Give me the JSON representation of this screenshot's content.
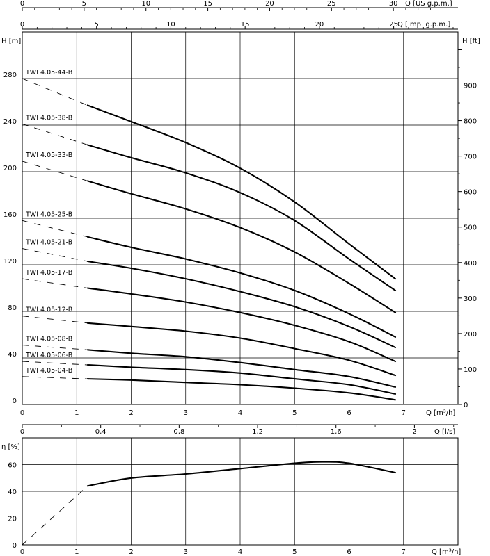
{
  "chart_data": [
    {
      "type": "line",
      "title": "",
      "xlabel": "Q [m³/h]",
      "ylabel": "H [m]",
      "ylabel_right": "H [ft]",
      "xlim": [
        0,
        8
      ],
      "ylim": [
        0,
        320
      ],
      "top_axis_usgpm": {
        "label": "Q [US g.p.m.]",
        "ticks": [
          "0",
          "5",
          "10",
          "15",
          "20",
          "25",
          "30"
        ]
      },
      "top_axis_imp": {
        "label": "Q [Imp. g.p.m.]",
        "ticks": [
          "0",
          "5",
          "10",
          "15",
          "20",
          "25"
        ]
      },
      "x_ticks": [
        "0",
        "1",
        "2",
        "3",
        "4",
        "5",
        "6",
        "7"
      ],
      "y_ticks": [
        "0",
        "40",
        "80",
        "120",
        "160",
        "200",
        "240",
        "280"
      ],
      "right_ticks": [
        "0",
        "100",
        "200",
        "300",
        "400",
        "500",
        "600",
        "700",
        "800",
        "900"
      ],
      "grid": true,
      "series": [
        {
          "name": "TWI 4.05-44-B",
          "x": [
            1.2,
            2,
            3,
            4,
            5,
            6,
            6.85
          ],
          "y": [
            257,
            243,
            225,
            203,
            174,
            138,
            108
          ],
          "dashed_to": 280
        },
        {
          "name": "TWI 4.05-38-B",
          "x": [
            1.2,
            2,
            3,
            4,
            5,
            6,
            6.85
          ],
          "y": [
            223,
            212,
            199,
            182,
            158,
            125,
            98
          ],
          "dashed_to": 241
        },
        {
          "name": "TWI 4.05-33-B",
          "x": [
            1.2,
            2,
            3,
            4,
            5,
            6,
            6.85
          ],
          "y": [
            192,
            181,
            168,
            152,
            131,
            104,
            79
          ],
          "dashed_to": 209
        },
        {
          "name": "TWI 4.05-25-B",
          "x": [
            1.2,
            2,
            3,
            4,
            5,
            6,
            6.85
          ],
          "y": [
            144,
            135,
            125,
            113,
            98,
            78,
            58
          ],
          "dashed_to": 158
        },
        {
          "name": "TWI 4.05-21-B",
          "x": [
            1.2,
            2,
            3,
            4,
            5,
            6,
            6.85
          ],
          "y": [
            123,
            117,
            108,
            97,
            84,
            67,
            49
          ],
          "dashed_to": 134
        },
        {
          "name": "TWI 4.05-17-B",
          "x": [
            1.2,
            2,
            3,
            4,
            5,
            6,
            6.85
          ],
          "y": [
            100,
            95,
            88,
            79,
            68,
            54,
            37
          ],
          "dashed_to": 108
        },
        {
          "name": "TWI 4.05-12-B",
          "x": [
            1.2,
            2,
            3,
            4,
            5,
            6,
            6.85
          ],
          "y": [
            70,
            67,
            63,
            57,
            48,
            38,
            25
          ],
          "dashed_to": 76
        },
        {
          "name": "TWI 4.05-08-B",
          "x": [
            1.2,
            2,
            3,
            4,
            5,
            6,
            6.85
          ],
          "y": [
            47,
            44,
            41,
            36,
            30,
            24,
            15
          ],
          "dashed_to": 51
        },
        {
          "name": "TWI 4.05-06-B",
          "x": [
            1.2,
            2,
            3,
            4,
            5,
            6,
            6.85
          ],
          "y": [
            34,
            32,
            30,
            27,
            22,
            17,
            9
          ],
          "dashed_to": 37
        },
        {
          "name": "TWI 4.05-04-B",
          "x": [
            1.2,
            2,
            3,
            4,
            5,
            6,
            6.85
          ],
          "y": [
            22,
            21,
            19,
            17,
            14,
            10,
            4
          ],
          "dashed_to": 24
        }
      ]
    },
    {
      "type": "line",
      "title": "",
      "xlabel": "Q [m³/h]",
      "ylabel": "η [%]",
      "xlim": [
        0,
        8
      ],
      "ylim": [
        0,
        80
      ],
      "top_axis_ls": {
        "label": "Q [l/s]",
        "ticks": [
          "0",
          "0,4",
          "0,8",
          "1,2",
          "1,6",
          "2"
        ]
      },
      "x_ticks": [
        "0",
        "1",
        "2",
        "3",
        "4",
        "5",
        "6",
        "7"
      ],
      "y_ticks": [
        "0",
        "20",
        "40",
        "60"
      ],
      "grid": true,
      "series": [
        {
          "x": [
            1.2,
            2,
            3,
            4,
            5,
            5.5,
            6,
            6.85
          ],
          "y": [
            44,
            50,
            53,
            57,
            61,
            62,
            61,
            54
          ]
        }
      ]
    }
  ]
}
